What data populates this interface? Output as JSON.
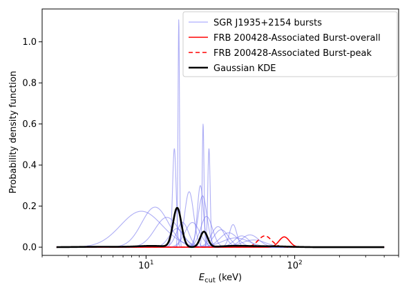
{
  "chart_data": {
    "type": "line",
    "xlabel_main": "E",
    "xlabel_sub": "cut",
    "xlabel_unit": " (keV)",
    "ylabel": "Probability density function",
    "xscale": "log",
    "xlim": [
      2.0,
      500
    ],
    "ylim": [
      -0.04,
      1.16
    ],
    "x_major_ticks": [
      10,
      100
    ],
    "x_major_tick_base": "10",
    "x_major_tick_exps": [
      "1",
      "2"
    ],
    "y_ticks": [
      0.0,
      0.2,
      0.4,
      0.6,
      0.8,
      1.0
    ],
    "y_tick_labels": [
      "0.0",
      "0.2",
      "0.4",
      "0.6",
      "0.8",
      "1.0"
    ],
    "curve_range": [
      2.5,
      400
    ],
    "legend_position": "top-right",
    "legend": [
      {
        "label": "SGR J1935+2154 bursts",
        "color": "#5555ff",
        "style": "solid-thin"
      },
      {
        "label": "FRB 200428-Associated Burst-overall",
        "color": "#ff0000",
        "style": "solid"
      },
      {
        "label": "FRB 200428-Associated Burst-peak",
        "color": "#ff0000",
        "style": "dashed"
      },
      {
        "label": "Gaussian KDE",
        "color": "#000000",
        "style": "solid-thick"
      }
    ],
    "burst_colors": {
      "line": "#7777ee",
      "opacity": 0.6
    },
    "burst_gaussians": [
      {
        "mu": 9.3,
        "peak": 0.175,
        "sigma_log10": 0.14
      },
      {
        "mu": 11.5,
        "peak": 0.195,
        "sigma_log10": 0.09
      },
      {
        "mu": 13.8,
        "peak": 0.145,
        "sigma_log10": 0.08
      },
      {
        "mu": 15.5,
        "peak": 0.48,
        "sigma_log10": 0.012
      },
      {
        "mu": 16.1,
        "peak": 0.09,
        "sigma_log10": 0.05
      },
      {
        "mu": 16.6,
        "peak": 1.11,
        "sigma_log10": 0.005
      },
      {
        "mu": 17.6,
        "peak": 0.12,
        "sigma_log10": 0.04
      },
      {
        "mu": 19.5,
        "peak": 0.27,
        "sigma_log10": 0.03
      },
      {
        "mu": 20.5,
        "peak": 0.12,
        "sigma_log10": 0.05
      },
      {
        "mu": 23.2,
        "peak": 0.3,
        "sigma_log10": 0.02
      },
      {
        "mu": 24.2,
        "peak": 0.6,
        "sigma_log10": 0.006
      },
      {
        "mu": 24.0,
        "peak": 0.25,
        "sigma_log10": 0.03
      },
      {
        "mu": 26.5,
        "peak": 0.48,
        "sigma_log10": 0.008
      },
      {
        "mu": 25.5,
        "peak": 0.15,
        "sigma_log10": 0.04
      },
      {
        "mu": 30.5,
        "peak": 0.1,
        "sigma_log10": 0.045
      },
      {
        "mu": 32.0,
        "peak": 0.085,
        "sigma_log10": 0.05
      },
      {
        "mu": 36.0,
        "peak": 0.07,
        "sigma_log10": 0.06
      },
      {
        "mu": 38.5,
        "peak": 0.11,
        "sigma_log10": 0.025
      },
      {
        "mu": 44.0,
        "peak": 0.055,
        "sigma_log10": 0.05
      },
      {
        "mu": 50.0,
        "peak": 0.06,
        "sigma_log10": 0.06
      },
      {
        "mu": 53.0,
        "peak": 0.035,
        "sigma_log10": 0.08
      },
      {
        "mu": 40.0,
        "peak": 0.045,
        "sigma_log10": 0.09
      }
    ],
    "frb_overall": {
      "mu": 85,
      "peak": 0.05,
      "sigma_log10": 0.035,
      "color": "#ff0000"
    },
    "frb_peak": {
      "mu": 63,
      "peak": 0.055,
      "sigma_log10": 0.045,
      "color": "#ff0000"
    },
    "kde_components": [
      {
        "mu": 5.0,
        "peak": 0.002,
        "sigma_log10": 0.15
      },
      {
        "mu": 11.0,
        "peak": 0.006,
        "sigma_log10": 0.1
      },
      {
        "mu": 16.2,
        "peak": 0.19,
        "sigma_log10": 0.028
      },
      {
        "mu": 24.5,
        "peak": 0.075,
        "sigma_log10": 0.025
      },
      {
        "mu": 40.0,
        "peak": 0.006,
        "sigma_log10": 0.1
      },
      {
        "mu": 70.0,
        "peak": 0.004,
        "sigma_log10": 0.12
      }
    ],
    "kde_color": "#000000"
  }
}
